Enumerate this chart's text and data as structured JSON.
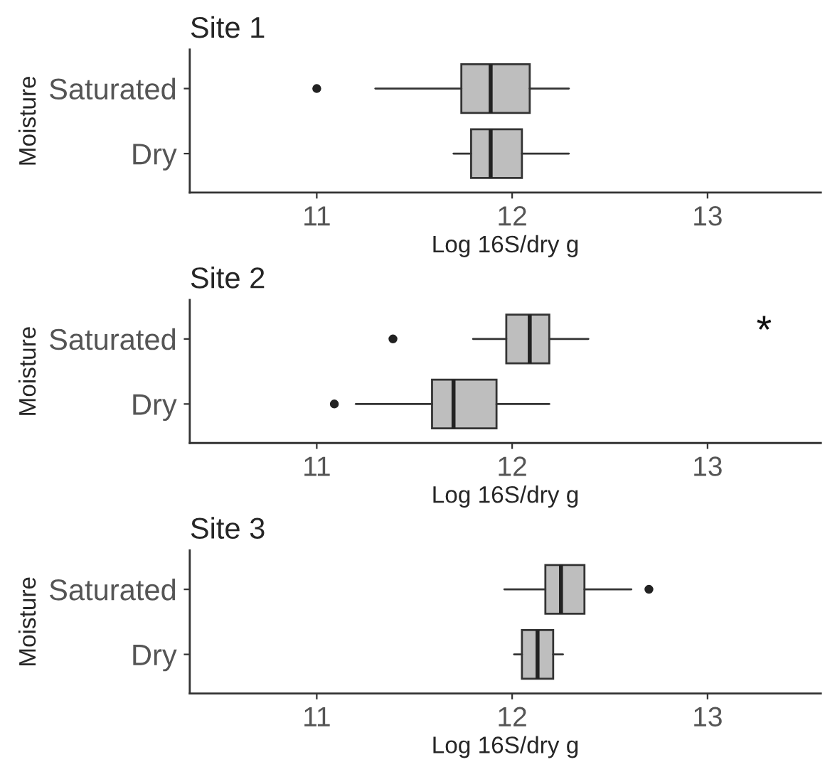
{
  "chart_data": [
    {
      "type": "box",
      "title": "Site 1",
      "xlabel": "Log 16S/dry g",
      "ylabel": "Moisture",
      "orientation": "horizontal",
      "categories": [
        "Saturated",
        "Dry"
      ],
      "color": "#bebebe",
      "xlim": [
        10.35,
        13.58
      ],
      "xticks": [
        11,
        12,
        13
      ],
      "boxes": [
        {
          "low": 11.3,
          "q1": 11.74,
          "median": 11.89,
          "q3": 12.09,
          "high": 12.29,
          "outliers": [
            11.0
          ]
        },
        {
          "low": 11.7,
          "q1": 11.79,
          "median": 11.89,
          "q3": 12.05,
          "high": 12.29
        }
      ]
    },
    {
      "type": "box",
      "title": "Site 2",
      "xlabel": "Log 16S/dry g",
      "ylabel": "Moisture",
      "orientation": "horizontal",
      "categories": [
        "Saturated",
        "Dry"
      ],
      "color": "#bebebe",
      "xlim": [
        10.35,
        13.58
      ],
      "xticks": [
        11,
        12,
        13
      ],
      "boxes": [
        {
          "low": 11.8,
          "q1": 11.97,
          "median": 12.09,
          "q3": 12.19,
          "high": 12.39,
          "outliers": [
            11.39
          ]
        },
        {
          "low": 11.2,
          "q1": 11.59,
          "median": 11.7,
          "q3": 11.92,
          "high": 12.19,
          "outliers": [
            11.09
          ]
        }
      ],
      "annotations": [
        "*"
      ]
    },
    {
      "type": "box",
      "title": "Site 3",
      "xlabel": "Log 16S/dry g",
      "ylabel": "Moisture",
      "orientation": "horizontal",
      "categories": [
        "Saturated",
        "Dry"
      ],
      "color": "#bebebe",
      "xlim": [
        10.35,
        13.58
      ],
      "xticks": [
        11,
        12,
        13
      ],
      "boxes": [
        {
          "low": 11.96,
          "q1": 12.17,
          "median": 12.25,
          "q3": 12.37,
          "high": 12.61,
          "outliers": [
            12.7
          ]
        },
        {
          "low": 12.01,
          "q1": 12.05,
          "median": 12.13,
          "q3": 12.21,
          "high": 12.26
        }
      ]
    }
  ]
}
